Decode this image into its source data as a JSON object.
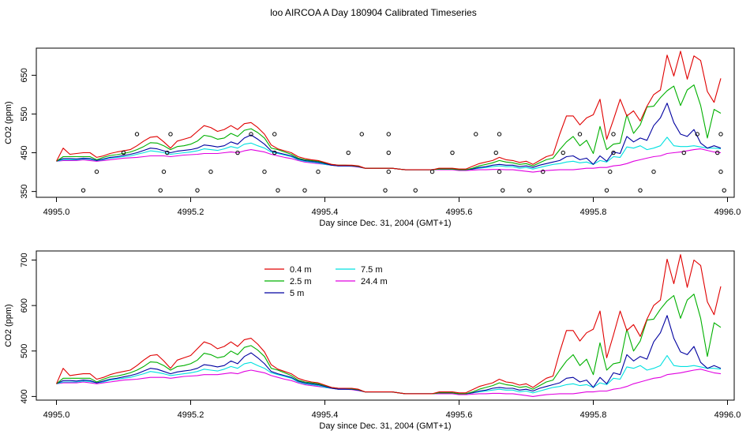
{
  "title": "loo AIRCOA A  Day 180904  Calibrated Timeseries",
  "colors": {
    "0.4 m": "#e00000",
    "2.5 m": "#00b000",
    "5 m": "#0000a0",
    "7.5 m": "#00e0e0",
    "24.4 m": "#e000e0"
  },
  "chart_data": [
    {
      "type": "line",
      "title": "",
      "xlabel": "Day since Dec. 31, 2004 (GMT+1)",
      "ylabel": "CO2 (ppm)",
      "xlim": [
        4994.97,
        4996.01
      ],
      "ylim": [
        335,
        720
      ],
      "xticks": [
        4995.0,
        4995.2,
        4995.4,
        4995.6,
        4995.8,
        4996.0
      ],
      "xtick_labels": [
        "4995.0",
        "4995.2",
        "4995.4",
        "4995.6",
        "4995.8",
        "4996.0"
      ],
      "yticks": [
        350,
        450,
        550,
        650
      ],
      "ytick_labels": [
        "350",
        "450",
        "550",
        "650"
      ],
      "grid": false,
      "legend": null,
      "x": [
        4995.0,
        4995.01,
        4995.02,
        4995.03,
        4995.04,
        4995.05,
        4995.06,
        4995.07,
        4995.08,
        4995.09,
        4995.1,
        4995.11,
        4995.12,
        4995.13,
        4995.14,
        4995.15,
        4995.16,
        4995.17,
        4995.18,
        4995.19,
        4995.2,
        4995.21,
        4995.22,
        4995.23,
        4995.24,
        4995.25,
        4995.26,
        4995.27,
        4995.28,
        4995.29,
        4995.3,
        4995.31,
        4995.32,
        4995.33,
        4995.34,
        4995.35,
        4995.36,
        4995.37,
        4995.38,
        4995.39,
        4995.4,
        4995.41,
        4995.42,
        4995.43,
        4995.44,
        4995.45,
        4995.46,
        4995.47,
        4995.48,
        4995.49,
        4995.5,
        4995.51,
        4995.52,
        4995.53,
        4995.54,
        4995.55,
        4995.56,
        4995.57,
        4995.58,
        4995.59,
        4995.6,
        4995.61,
        4995.62,
        4995.63,
        4995.64,
        4995.65,
        4995.66,
        4995.67,
        4995.68,
        4995.69,
        4995.7,
        4995.71,
        4995.72,
        4995.73,
        4995.74,
        4995.75,
        4995.76,
        4995.77,
        4995.78,
        4995.79,
        4995.8,
        4995.81,
        4995.82,
        4995.83,
        4995.84,
        4995.85,
        4995.86,
        4995.87,
        4995.88,
        4995.89,
        4995.9,
        4995.91,
        4995.92,
        4995.93,
        4995.94,
        4995.95,
        4995.96,
        4995.97,
        4995.98,
        4995.99
      ],
      "series": [
        {
          "name": "0.4 m",
          "values": [
            428,
            462,
            446,
            448,
            450,
            450,
            438,
            442,
            448,
            452,
            455,
            458,
            468,
            480,
            490,
            492,
            478,
            462,
            480,
            485,
            490,
            505,
            520,
            515,
            505,
            510,
            520,
            510,
            525,
            528,
            515,
            498,
            470,
            460,
            455,
            450,
            440,
            435,
            432,
            430,
            425,
            420,
            418,
            418,
            418,
            416,
            410,
            410,
            410,
            410,
            410,
            408,
            406,
            406,
            406,
            406,
            406,
            410,
            410,
            410,
            408,
            408,
            415,
            422,
            426,
            430,
            438,
            432,
            430,
            425,
            428,
            420,
            430,
            440,
            445,
            498,
            545,
            545,
            522,
            540,
            548,
            588,
            485,
            535,
            588,
            545,
            558,
            532,
            570,
            600,
            612,
            702,
            648,
            712,
            640,
            700,
            688,
            608,
            580,
            642
          ]
        },
        {
          "name": "2.5 m",
          "values": [
            428,
            440,
            440,
            440,
            440,
            440,
            432,
            438,
            443,
            445,
            448,
            452,
            458,
            466,
            476,
            475,
            468,
            458,
            466,
            468,
            472,
            480,
            495,
            492,
            485,
            488,
            500,
            492,
            508,
            512,
            502,
            488,
            462,
            458,
            452,
            446,
            436,
            432,
            430,
            428,
            424,
            420,
            418,
            418,
            417,
            415,
            410,
            410,
            410,
            410,
            410,
            408,
            406,
            406,
            406,
            406,
            406,
            408,
            408,
            408,
            406,
            406,
            410,
            416,
            420,
            424,
            430,
            426,
            424,
            420,
            422,
            416,
            424,
            432,
            436,
            458,
            478,
            492,
            468,
            482,
            448,
            518,
            458,
            472,
            475,
            548,
            500,
            522,
            568,
            570,
            592,
            610,
            622,
            572,
            612,
            625,
            572,
            488,
            562,
            552
          ]
        },
        {
          "name": "5 m",
          "values": [
            428,
            435,
            435,
            434,
            436,
            435,
            430,
            434,
            438,
            440,
            443,
            446,
            450,
            456,
            462,
            460,
            455,
            450,
            454,
            456,
            458,
            462,
            470,
            468,
            465,
            468,
            478,
            472,
            488,
            496,
            485,
            472,
            455,
            450,
            446,
            442,
            434,
            430,
            428,
            426,
            422,
            418,
            416,
            416,
            416,
            414,
            410,
            410,
            410,
            410,
            410,
            408,
            406,
            406,
            406,
            406,
            406,
            408,
            408,
            408,
            406,
            406,
            408,
            412,
            414,
            418,
            420,
            418,
            418,
            414,
            416,
            412,
            418,
            422,
            426,
            430,
            440,
            442,
            432,
            436,
            420,
            442,
            428,
            452,
            448,
            492,
            478,
            488,
            482,
            520,
            540,
            578,
            528,
            498,
            492,
            510,
            475,
            462,
            468,
            462
          ]
        },
        {
          "name": "7.5 m",
          "values": [
            428,
            432,
            432,
            432,
            434,
            433,
            430,
            432,
            436,
            438,
            440,
            442,
            446,
            450,
            455,
            453,
            450,
            446,
            448,
            450,
            452,
            455,
            460,
            458,
            456,
            460,
            466,
            462,
            472,
            475,
            468,
            462,
            452,
            448,
            444,
            440,
            432,
            428,
            426,
            424,
            420,
            418,
            416,
            416,
            416,
            414,
            410,
            410,
            410,
            410,
            410,
            408,
            406,
            406,
            406,
            406,
            406,
            408,
            408,
            408,
            406,
            406,
            408,
            410,
            412,
            414,
            416,
            414,
            414,
            410,
            412,
            408,
            412,
            416,
            420,
            422,
            426,
            428,
            424,
            426,
            420,
            430,
            426,
            440,
            438,
            465,
            462,
            468,
            458,
            462,
            468,
            490,
            468,
            466,
            466,
            468,
            465,
            462,
            462,
            460
          ]
        },
        {
          "name": "24.4 m",
          "values": [
            428,
            430,
            430,
            430,
            432,
            430,
            428,
            430,
            432,
            434,
            436,
            437,
            438,
            440,
            442,
            442,
            442,
            440,
            442,
            444,
            445,
            446,
            448,
            448,
            448,
            450,
            452,
            450,
            455,
            458,
            455,
            452,
            446,
            442,
            438,
            435,
            430,
            426,
            424,
            422,
            420,
            418,
            416,
            416,
            415,
            413,
            410,
            410,
            410,
            410,
            410,
            408,
            406,
            406,
            406,
            406,
            406,
            406,
            406,
            406,
            404,
            404,
            405,
            406,
            406,
            407,
            407,
            406,
            406,
            404,
            402,
            400,
            402,
            404,
            405,
            406,
            406,
            406,
            408,
            410,
            410,
            412,
            412,
            416,
            418,
            422,
            428,
            432,
            436,
            440,
            442,
            448,
            450,
            452,
            455,
            458,
            460,
            456,
            452,
            450
          ]
        }
      ],
      "markers": {
        "name": "status",
        "points": [
          [
            4995.04,
            353
          ],
          [
            4995.06,
            401
          ],
          [
            4995.1,
            450
          ],
          [
            4995.12,
            498
          ],
          [
            4995.155,
            353
          ],
          [
            4995.16,
            401
          ],
          [
            4995.165,
            450
          ],
          [
            4995.17,
            498
          ],
          [
            4995.21,
            353
          ],
          [
            4995.23,
            401
          ],
          [
            4995.27,
            450
          ],
          [
            4995.29,
            498
          ],
          [
            4995.31,
            401
          ],
          [
            4995.325,
            450
          ],
          [
            4995.325,
            498
          ],
          [
            4995.33,
            353
          ],
          [
            4995.37,
            353
          ],
          [
            4995.39,
            401
          ],
          [
            4995.435,
            450
          ],
          [
            4995.455,
            498
          ],
          [
            4995.49,
            353
          ],
          [
            4995.495,
            401
          ],
          [
            4995.495,
            450
          ],
          [
            4995.495,
            498
          ],
          [
            4995.535,
            353
          ],
          [
            4995.56,
            401
          ],
          [
            4995.59,
            450
          ],
          [
            4995.625,
            498
          ],
          [
            4995.655,
            450
          ],
          [
            4995.66,
            498
          ],
          [
            4995.66,
            401
          ],
          [
            4995.665,
            353
          ],
          [
            4995.705,
            353
          ],
          [
            4995.725,
            401
          ],
          [
            4995.755,
            450
          ],
          [
            4995.78,
            498
          ],
          [
            4995.82,
            353
          ],
          [
            4995.825,
            401
          ],
          [
            4995.83,
            450
          ],
          [
            4995.83,
            498
          ],
          [
            4995.87,
            353
          ],
          [
            4995.89,
            401
          ],
          [
            4995.935,
            450
          ],
          [
            4995.955,
            498
          ],
          [
            4995.985,
            450
          ],
          [
            4995.99,
            498
          ],
          [
            4995.99,
            401
          ],
          [
            4995.995,
            353
          ]
        ]
      }
    },
    {
      "type": "line",
      "title": "",
      "xlabel": "Day since Dec. 31, 2004 (GMT+1)",
      "ylabel": "CO2 (ppm)",
      "xlim": [
        4994.97,
        4996.01
      ],
      "ylim": [
        392,
        720
      ],
      "xticks": [
        4995.0,
        4995.2,
        4995.4,
        4995.6,
        4995.8,
        4996.0
      ],
      "xtick_labels": [
        "4995.0",
        "4995.2",
        "4995.4",
        "4995.6",
        "4995.8",
        "4996.0"
      ],
      "yticks": [
        400,
        500,
        600,
        700
      ],
      "ytick_labels": [
        "400",
        "500",
        "600",
        "700"
      ],
      "grid": false,
      "legend": "top-left",
      "legend_entries": [
        "0.4 m",
        "2.5 m",
        "5 m",
        "7.5 m",
        "24.4 m"
      ],
      "x_ref": 0,
      "series_ref": 0
    }
  ]
}
